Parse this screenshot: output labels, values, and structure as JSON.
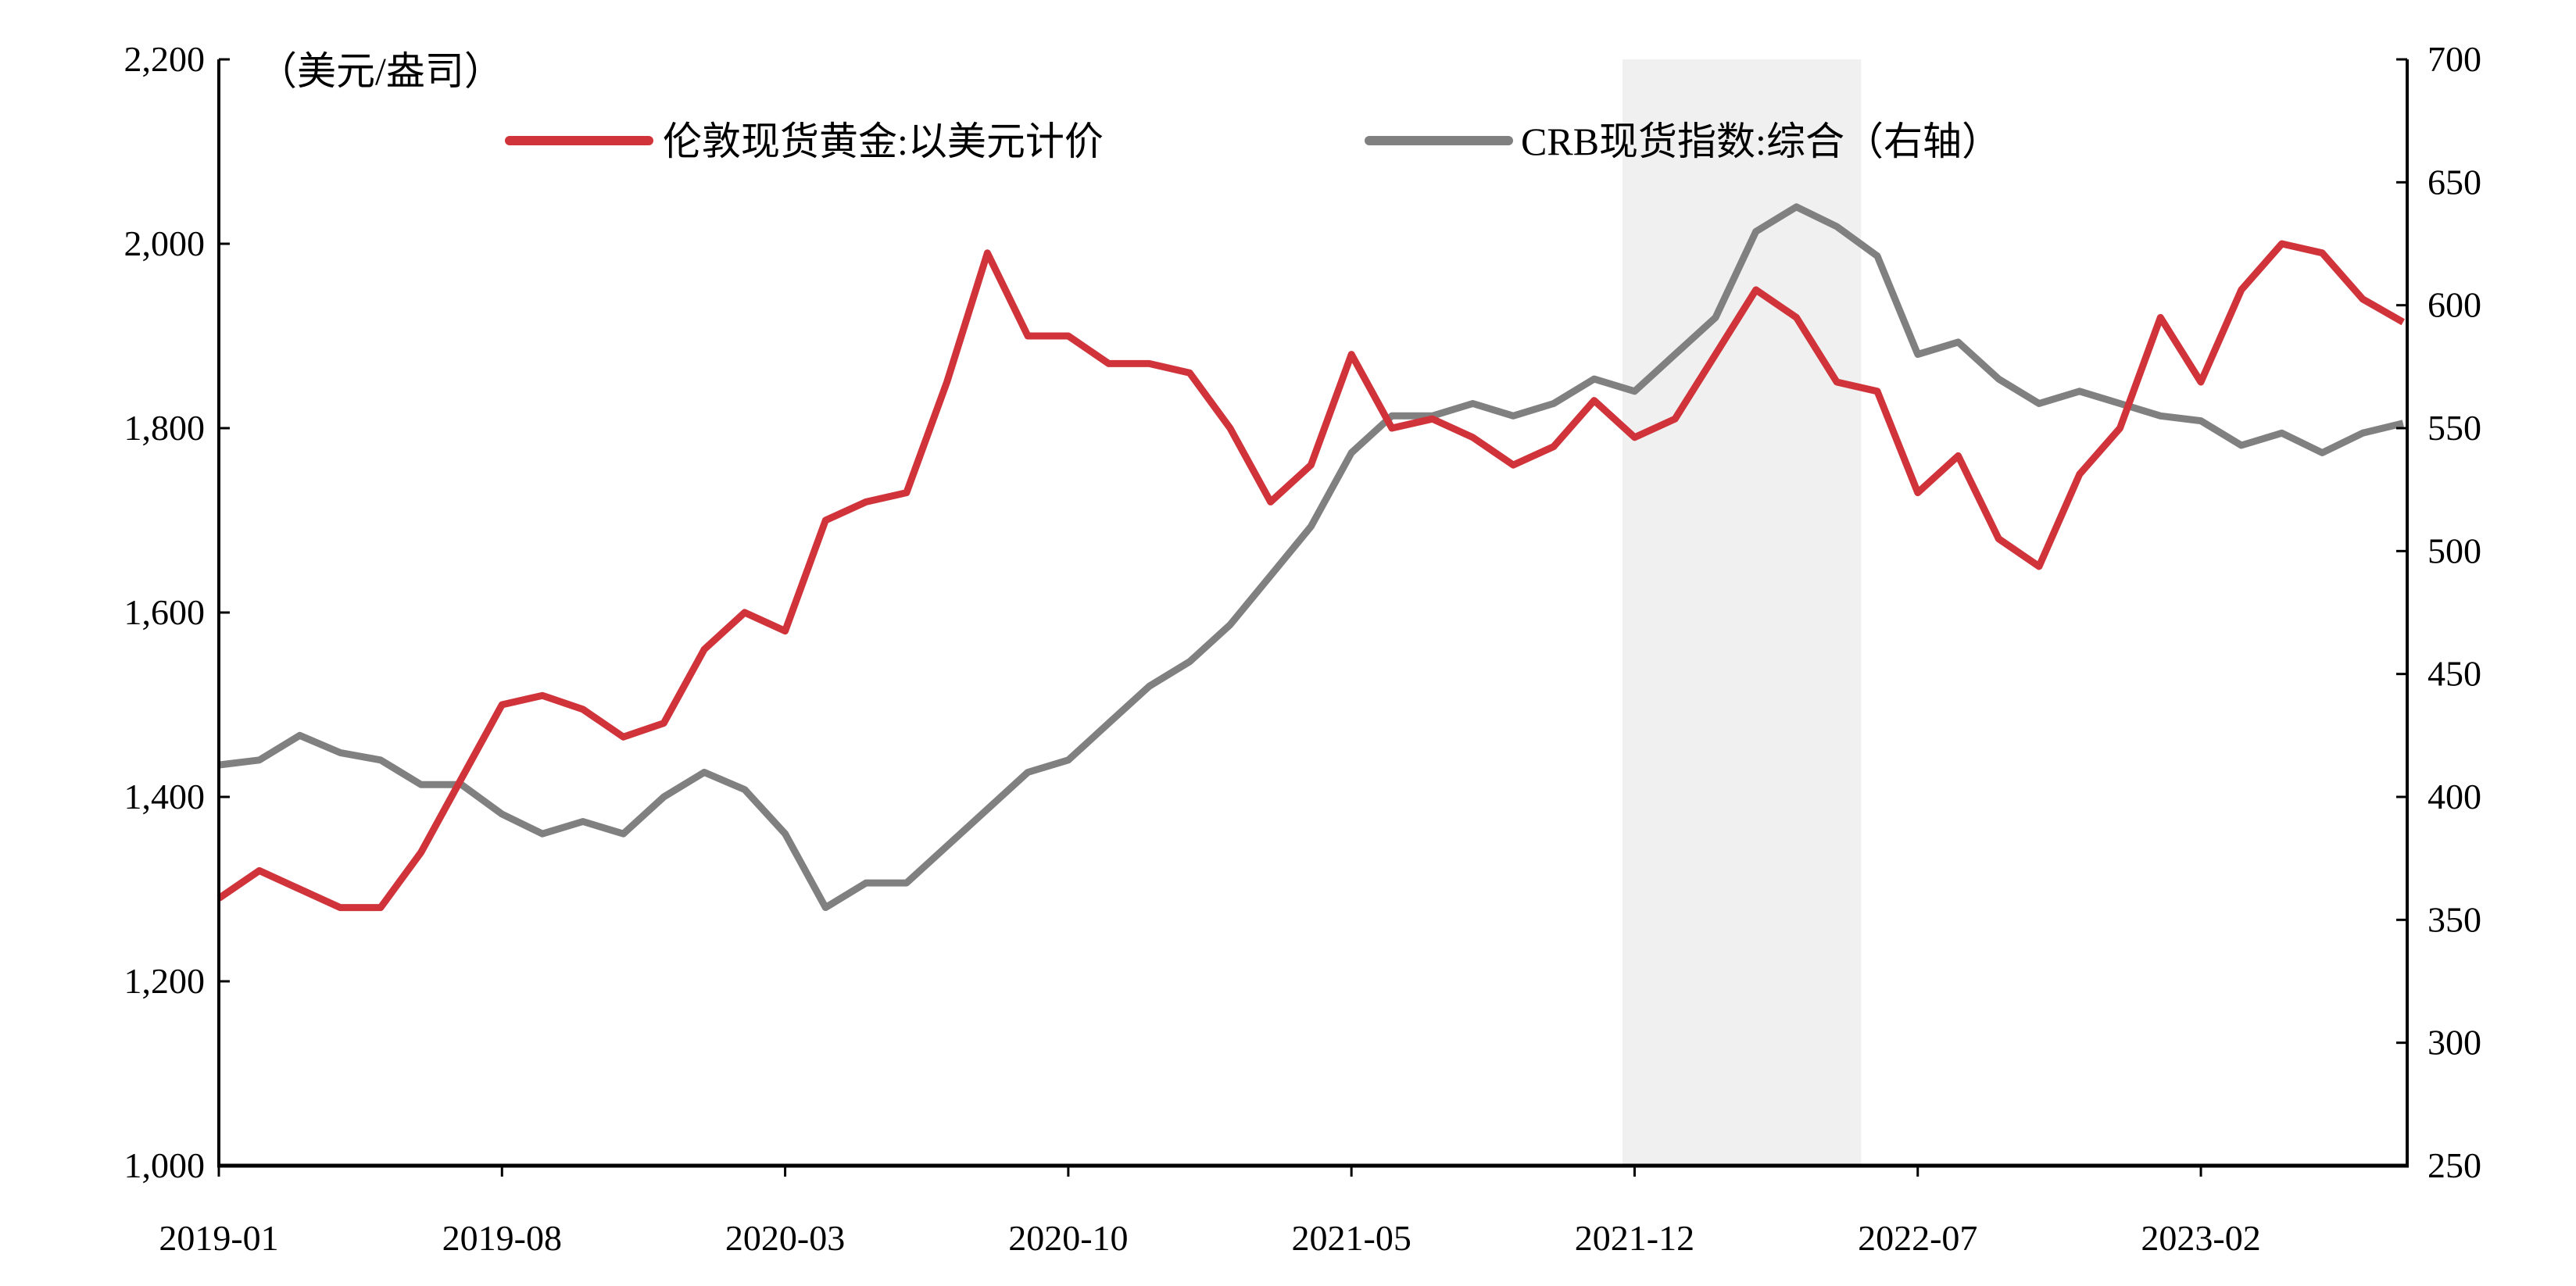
{
  "chart_data": {
    "type": "line",
    "unit_label": "（美元/盎司）",
    "x_ticks": [
      "2019-01",
      "2019-08",
      "2020-03",
      "2020-10",
      "2021-05",
      "2021-12",
      "2022-07",
      "2023-02"
    ],
    "x_tick_months": [
      0,
      7,
      14,
      21,
      28,
      35,
      42,
      49
    ],
    "x_range_months": [
      0,
      54.1
    ],
    "x": [
      "2019-01",
      "2019-02",
      "2019-03",
      "2019-04",
      "2019-05",
      "2019-06",
      "2019-07",
      "2019-08",
      "2019-09",
      "2019-10",
      "2019-11",
      "2019-12",
      "2020-01",
      "2020-02",
      "2020-03",
      "2020-04",
      "2020-05",
      "2020-06",
      "2020-07",
      "2020-08",
      "2020-09",
      "2020-10",
      "2020-11",
      "2020-12",
      "2021-01",
      "2021-02",
      "2021-03",
      "2021-04",
      "2021-05",
      "2021-06",
      "2021-07",
      "2021-08",
      "2021-09",
      "2021-10",
      "2021-11",
      "2021-12",
      "2022-01",
      "2022-02",
      "2022-03",
      "2022-04",
      "2022-05",
      "2022-06",
      "2022-07",
      "2022-08",
      "2022-09",
      "2022-10",
      "2022-11",
      "2022-12",
      "2023-01",
      "2023-02",
      "2023-03",
      "2023-04",
      "2023-05",
      "2023-06",
      "2023-07"
    ],
    "left_axis": {
      "ylim": [
        1000,
        2200
      ],
      "ticks": [
        "1,000",
        "1,200",
        "1,400",
        "1,600",
        "1,800",
        "2,000",
        "2,200"
      ],
      "tick_values": [
        1000,
        1200,
        1400,
        1600,
        1800,
        2000,
        2200
      ]
    },
    "right_axis": {
      "ylim": [
        250,
        700
      ],
      "ticks": [
        "250",
        "300",
        "350",
        "400",
        "450",
        "500",
        "550",
        "600",
        "650",
        "700"
      ],
      "tick_values": [
        250,
        300,
        350,
        400,
        450,
        500,
        550,
        600,
        650,
        700
      ]
    },
    "shaded_region_months": [
      34.7,
      40.6
    ],
    "series": [
      {
        "name": "伦敦现货黄金:以美元计价",
        "axis": "left",
        "color": "#d0343a",
        "values": [
          1290,
          1320,
          1300,
          1280,
          1280,
          1340,
          1420,
          1500,
          1510,
          1495,
          1465,
          1480,
          1560,
          1600,
          1580,
          1700,
          1720,
          1730,
          1850,
          1990,
          1900,
          1900,
          1870,
          1870,
          1860,
          1800,
          1720,
          1760,
          1880,
          1800,
          1810,
          1790,
          1760,
          1780,
          1830,
          1790,
          1810,
          1880,
          1950,
          1920,
          1850,
          1840,
          1730,
          1770,
          1680,
          1650,
          1750,
          1800,
          1920,
          1850,
          1950,
          2000,
          1990,
          1940,
          1915
        ]
      },
      {
        "name": "CRB现货指数:综合（右轴）",
        "axis": "right",
        "color": "#808080",
        "values": [
          413,
          415,
          425,
          418,
          415,
          405,
          405,
          393,
          385,
          390,
          385,
          400,
          410,
          403,
          385,
          355,
          365,
          365,
          380,
          395,
          410,
          415,
          430,
          445,
          455,
          470,
          490,
          510,
          540,
          555,
          555,
          560,
          555,
          560,
          570,
          565,
          580,
          595,
          630,
          640,
          632,
          620,
          580,
          585,
          570,
          560,
          565,
          560,
          555,
          553,
          543,
          548,
          540,
          548,
          552
        ]
      }
    ],
    "legend_position": "top"
  }
}
